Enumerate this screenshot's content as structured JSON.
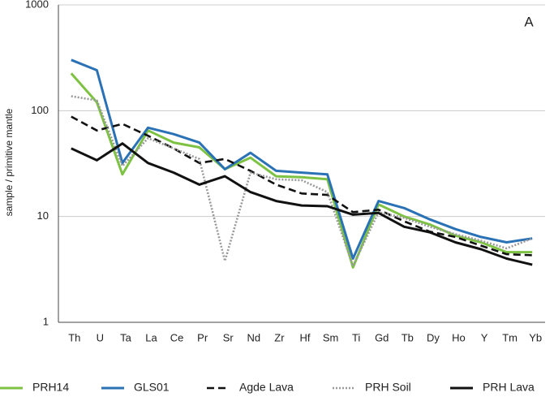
{
  "chart_data": {
    "type": "line",
    "annotation": "A",
    "y_label": "sample / primitive mantle",
    "categories": [
      "Th",
      "U",
      "Ta",
      "La",
      "Ce",
      "Pr",
      "Sr",
      "Nd",
      "Zr",
      "Hf",
      "Sm",
      "Ti",
      "Gd",
      "Tb",
      "Dy",
      "Ho",
      "Y",
      "Tm",
      "Yb"
    ],
    "ylim": [
      1,
      1000
    ],
    "yticks": [
      1,
      10,
      100,
      1000
    ],
    "log_y": true,
    "grid": true,
    "legend": "bottom",
    "series": [
      {
        "name": "PRH14",
        "color": "#7dc242",
        "style": "solid",
        "values": [
          225,
          120,
          25,
          65,
          50,
          45,
          28,
          36,
          24,
          23.5,
          22.5,
          3.3,
          13,
          10,
          8.4,
          6.6,
          5.7,
          4.6,
          4.6
        ]
      },
      {
        "name": "GLS01",
        "color": "#2a72b5",
        "style": "solid",
        "values": [
          302,
          241,
          32,
          69,
          60,
          50,
          28,
          40,
          27,
          26,
          25,
          4,
          14,
          12,
          9.4,
          7.6,
          6.4,
          5.7,
          6.2
        ]
      },
      {
        "name": "Agde Lava",
        "color": "#111111",
        "style": "dashed",
        "values": [
          88,
          65,
          75,
          58,
          44,
          32,
          35,
          27,
          20,
          16.5,
          16,
          11,
          11.6,
          9,
          7.2,
          6.4,
          5.3,
          4.4,
          4.3
        ]
      },
      {
        "name": "PRH Soil",
        "color": "#999999",
        "style": "dotted",
        "values": [
          137,
          125,
          30,
          55,
          44,
          35,
          3.8,
          26,
          22.5,
          22,
          17,
          3.4,
          11,
          9.7,
          8,
          6.8,
          5.9,
          5,
          6.2
        ]
      },
      {
        "name": "PRH Lava",
        "color": "#111111",
        "style": "solid",
        "values": [
          44,
          34,
          49,
          32,
          26,
          20,
          24,
          17,
          14,
          12.7,
          12.5,
          10.4,
          10.8,
          8,
          7.1,
          5.7,
          4.9,
          4,
          3.5
        ]
      }
    ]
  }
}
